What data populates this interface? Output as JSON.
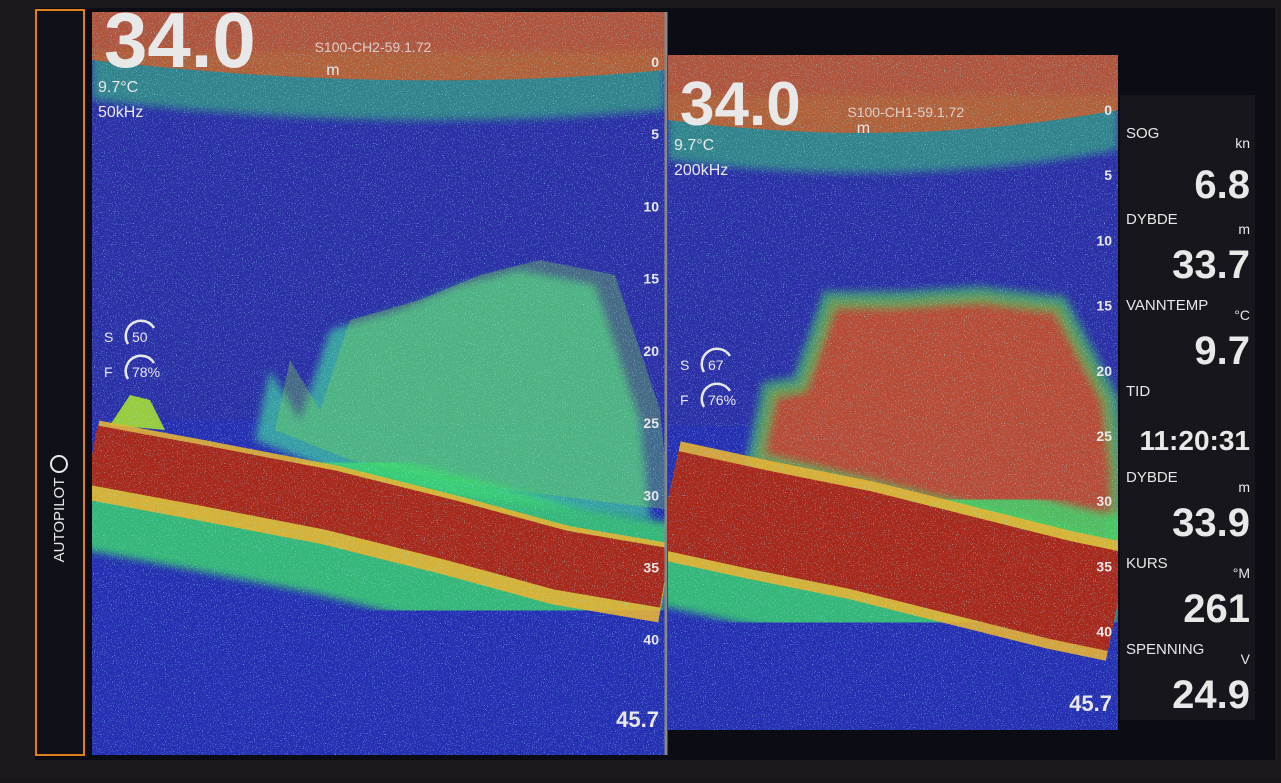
{
  "autopilot": "AUTOPILOT",
  "panels": [
    {
      "depth": "34.0",
      "depth_unit": "m",
      "source": "S100-CH2-59.1.72",
      "temperature": "9.7°C",
      "frequency": "50kHz",
      "gain": {
        "s_label": "S",
        "s": "50",
        "f_label": "F",
        "f": "78%"
      },
      "scale": [
        0,
        5,
        10,
        15,
        20,
        25,
        30,
        35,
        40
      ],
      "range": 45.7
    },
    {
      "depth": "34.0",
      "depth_unit": "m",
      "source": "S100-CH1-59.1.72",
      "temperature": "9.7°C",
      "frequency": "200kHz",
      "gain": {
        "s_label": "S",
        "s": "67",
        "f_label": "F",
        "f": "76%"
      },
      "scale": [
        0,
        5,
        10,
        15,
        20,
        25,
        30,
        35,
        40
      ],
      "range": 45.7
    }
  ],
  "sidebar": [
    {
      "label": "SOG",
      "unit": "kn",
      "value": "6.8"
    },
    {
      "label": "DYBDE",
      "unit": "m",
      "value": "33.7"
    },
    {
      "label": "VANNTEMP",
      "unit": "°C",
      "value": "9.7"
    },
    {
      "label": "TID",
      "unit": null,
      "value": "11:20:31"
    },
    {
      "label": "DYBDE",
      "unit": "m",
      "value": "33.9"
    },
    {
      "label": "KURS",
      "unit": "°M",
      "value": "261"
    },
    {
      "label": "SPENNING",
      "unit": "V",
      "value": "24.9"
    }
  ]
}
